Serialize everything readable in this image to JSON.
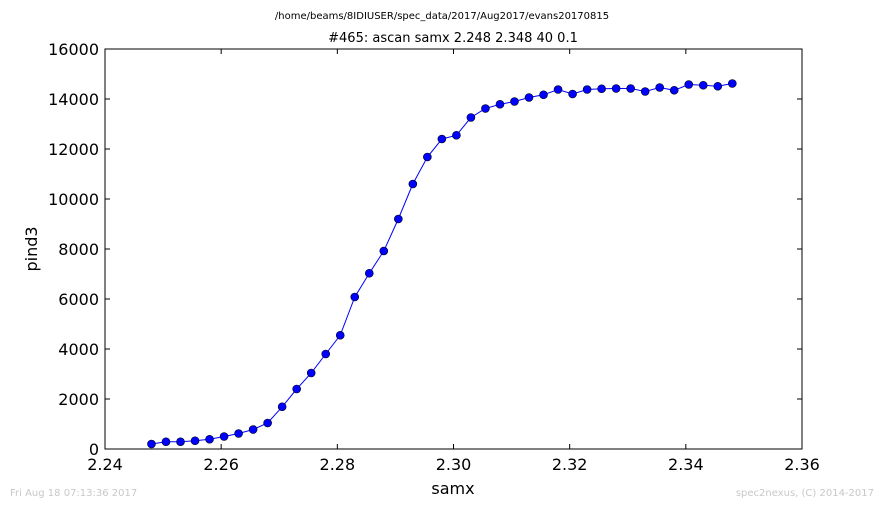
{
  "chart_data": {
    "type": "line",
    "suptitle": "/home/beams/8IDIUSER/spec_data/2017/Aug2017/evans20170815",
    "title": "#465: ascan  samx 2.248 2.348  40 0.1",
    "xlabel": "samx",
    "ylabel": "pind3",
    "xlim": [
      2.24,
      2.36
    ],
    "ylim": [
      0,
      16000
    ],
    "xticks": [
      "2.24",
      "2.26",
      "2.28",
      "2.30",
      "2.32",
      "2.34",
      "2.36"
    ],
    "yticks": [
      "0",
      "2000",
      "4000",
      "6000",
      "8000",
      "10000",
      "12000",
      "14000",
      "16000"
    ],
    "grid": false,
    "legend": "none",
    "series": [
      {
        "color": "#0000ff",
        "marker": "circle",
        "x": [
          2.248,
          2.2505,
          2.253,
          2.2555,
          2.258,
          2.2605,
          2.263,
          2.2655,
          2.268,
          2.2705,
          2.273,
          2.2755,
          2.278,
          2.2805,
          2.283,
          2.2855,
          2.288,
          2.2905,
          2.293,
          2.2955,
          2.298,
          2.3005,
          2.303,
          2.3055,
          2.308,
          2.3105,
          2.313,
          2.3155,
          2.318,
          2.3205,
          2.323,
          2.3255,
          2.328,
          2.3305,
          2.333,
          2.3355,
          2.338,
          2.3405,
          2.343,
          2.3455,
          2.348
        ],
        "y": [
          200,
          290,
          290,
          330,
          390,
          500,
          620,
          780,
          1040,
          1690,
          2400,
          3040,
          3800,
          4550,
          6080,
          7030,
          7920,
          9200,
          10600,
          11680,
          12400,
          12550,
          13260,
          13620,
          13790,
          13900,
          14060,
          14170,
          14380,
          14200,
          14380,
          14410,
          14420,
          14420,
          14300,
          14460,
          14350,
          14580,
          14550,
          14510,
          14620
        ]
      }
    ]
  },
  "footer": {
    "timestamp": "Fri Aug 18 07:13:36 2017",
    "credit": "spec2nexus, (C) 2014-2017"
  }
}
